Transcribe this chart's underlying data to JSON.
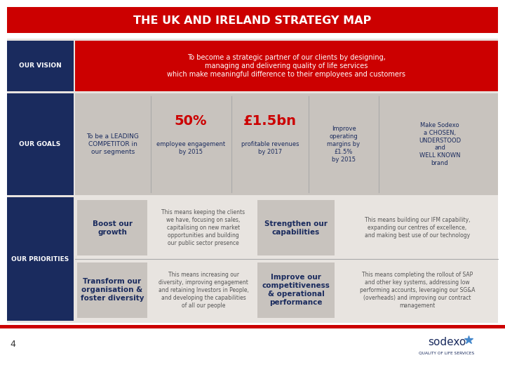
{
  "title": "THE UK AND IRELAND STRATEGY MAP",
  "bg_color": "#ffffff",
  "title_bg": "#cc0000",
  "title_text_color": "#ffffff",
  "label_bg": "#1a2b5e",
  "label_text_color": "#ffffff",
  "vision_bg": "#cc0000",
  "vision_text_color": "#ffffff",
  "goals_bg": "#c8c3be",
  "priorities_bg": "#c8c3be",
  "dark_navy": "#1a2b5e",
  "red": "#cc0000",
  "gray_bg": "#e8e4e0",
  "vision_text": "To become a strategic partner of our clients by designing,\nmanaging and delivering quality of life services\nwhich make meaningful difference to their employees and customers",
  "goals_label": "OUR GOALS",
  "vision_label": "OUR VISION",
  "priorities_label": "OUR PRIORITIES",
  "goal1_title": "To be a LEADING\nCOMPETITOR in\nour segments",
  "goal2_title": "50%",
  "goal2_sub": "employee engagement\nby 2015",
  "goal3_title": "£1.5bn",
  "goal3_sub": "profitable revenues\nby 2017",
  "goal4_title": "Improve\noperating\nmargins by\n£1.5%\nby 2015",
  "goal5_title": "Make Sodexo\na CHOSEN,\nUNDERSTOOD\nand\nWELL KNOWN\nbrand",
  "p1_title": "Boost our\ngrowth",
  "p1_desc": "This means keeping the clients\nwe have, focusing on sales,\ncapitalising on new market\nopportunities and building\nour public sector presence",
  "p2_title": "Strengthen our\ncapabilities",
  "p2_desc": "This means building our IFM capability,\nexpanding our centres of excellence,\nand making best use of our technology",
  "p3_title": "Transform our\norganisation &\nfoster diversity",
  "p3_desc": "This means increasing our\ndiversity, improving engagement\nand retaining Investors in People,\nand developing the capabilities\nof all our people",
  "p4_title": "Improve our\ncompetitiveness\n& operational\nperformance",
  "p4_desc": "This means completing the rollout of SAP\nand other key systems, addressing low\nperforming accounts, leveraging our SG&A\n(overheads) and improving our contract\nmanagement",
  "footer_red": "#cc0000",
  "page_num": "4",
  "sodexo_blue": "#1a2b5e",
  "sodexo_star_color": "#4488cc"
}
